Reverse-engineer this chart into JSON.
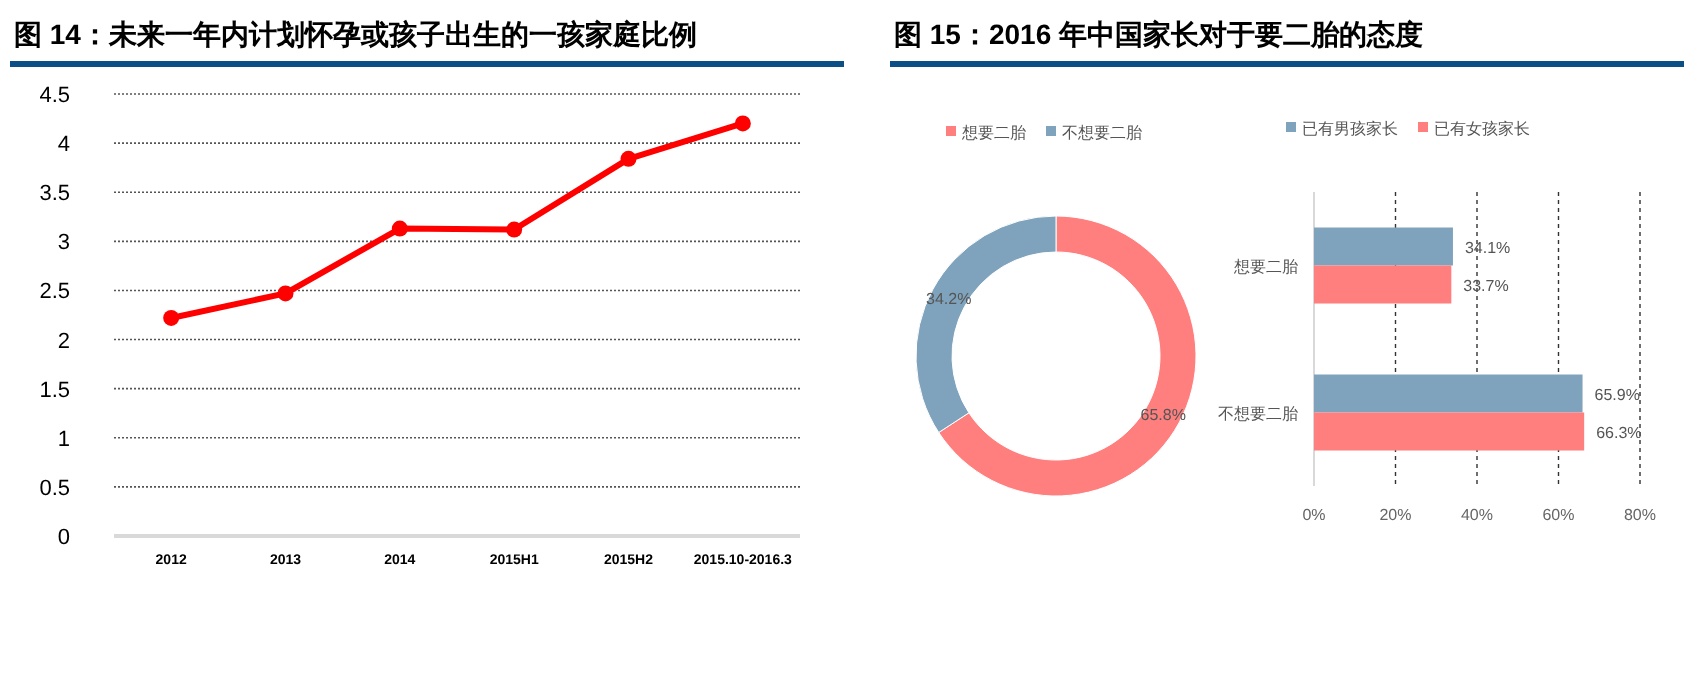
{
  "chart_data": [
    {
      "type": "line",
      "title": "图 14：未来一年内计划怀孕或孩子出生的一孩家庭比例",
      "categories": [
        "2012",
        "2013",
        "2014",
        "2015H1",
        "2015H2",
        "2015.10-2016.3"
      ],
      "series": [
        {
          "color": "#ff0000",
          "values": [
            2.22,
            2.47,
            3.13,
            3.12,
            3.84,
            4.2
          ]
        }
      ],
      "ylim": [
        0,
        4.5
      ],
      "yticks": [
        0,
        0.5,
        1,
        1.5,
        2,
        2.5,
        3,
        3.5,
        4,
        4.5
      ],
      "grid": "y",
      "marker": "circle",
      "line_style": "solid"
    },
    {
      "type": "donut",
      "title": "图 15：2016 年中国家长对于要二胎的态度",
      "categories": [
        "想要二胎",
        "不想要二胎"
      ],
      "values": [
        65.8,
        34.2
      ],
      "colors": [
        "#ff7f7f",
        "#7fa3bc"
      ],
      "value_labels": [
        "65.8%",
        "34.2%"
      ],
      "legend": "top"
    },
    {
      "type": "bar",
      "orientation": "horizontal",
      "categories": [
        "想要二胎",
        "不想要二胎"
      ],
      "series": [
        {
          "name": "已有男孩家长",
          "color": "#7fa3bc",
          "values": [
            34.1,
            65.9
          ],
          "value_labels": [
            "34.1%",
            "65.9%"
          ]
        },
        {
          "name": "已有女孩家长",
          "color": "#ff7f7f",
          "values": [
            33.7,
            66.3
          ],
          "value_labels": [
            "33.7%",
            "66.3%"
          ]
        }
      ],
      "xlim": [
        0,
        80
      ],
      "xticks": [
        {
          "value": 0,
          "label": "0%"
        },
        {
          "value": 20,
          "label": "20%"
        },
        {
          "value": 40,
          "label": "40%"
        },
        {
          "value": 60,
          "label": "60%"
        },
        {
          "value": 80,
          "label": "80%"
        }
      ],
      "grid": "x",
      "legend": "top"
    }
  ]
}
